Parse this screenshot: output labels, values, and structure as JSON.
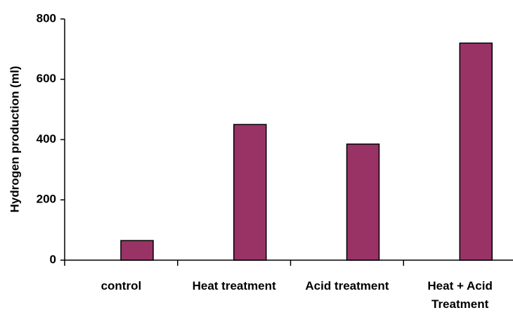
{
  "chart_data": {
    "type": "bar",
    "y_label": "Hydrogen production (ml)",
    "categories": [
      "control",
      "Heat treatment",
      "Acid treatment",
      "Heat + Acid Treatment"
    ],
    "values": [
      65,
      450,
      385,
      720
    ],
    "color": "#993366",
    "ylim": [
      0,
      800
    ],
    "yticks": [
      0,
      200,
      400,
      600,
      800
    ],
    "grid": false
  }
}
